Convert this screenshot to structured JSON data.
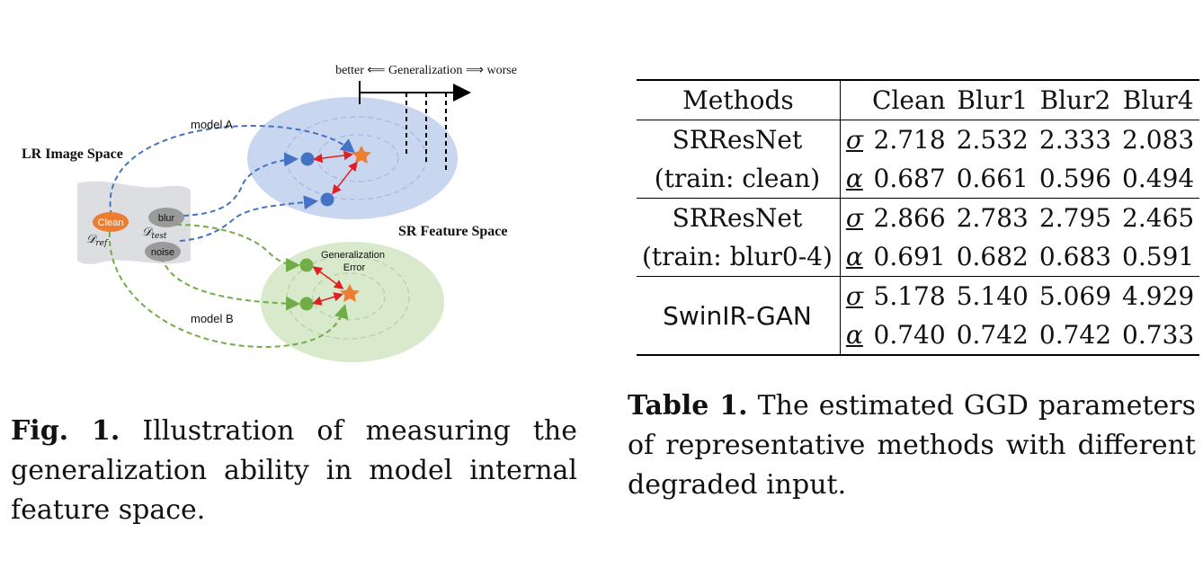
{
  "figure": {
    "axis_label": "better ⟸ Generalization ⟹ worse",
    "lr_space_label": "LR Image Space",
    "sr_space_label": "SR Feature Space",
    "model_a": "model A",
    "model_b": "model B",
    "clean": "Clean",
    "blur": "blur",
    "noise": "noise",
    "d_ref": "𝒟",
    "d_ref_sub": "ref",
    "d_test": "𝒟",
    "d_test_sub": "test",
    "gen_error_1": "Generalization",
    "gen_error_2": "Error",
    "colors": {
      "blue_region": "#c9d6ef",
      "green_region": "#d8eacb",
      "blue_dot": "#4472c4",
      "green_dot": "#70ad47",
      "orange": "#ed7d31",
      "red_arrow": "#e02020"
    }
  },
  "fig_caption": {
    "label": "Fig. 1.",
    "text": " Illustration of measuring the generalization ability in model internal feature space."
  },
  "table": {
    "headers": [
      "Methods",
      "Clean",
      "Blur1",
      "Blur2",
      "Blur4"
    ],
    "rows": [
      {
        "method_line1": "SRResNet",
        "method_line2": "(train: clean)",
        "sigma": [
          "2.718",
          "2.532",
          "2.333",
          "2.083"
        ],
        "alpha": [
          "0.687",
          "0.661",
          "0.596",
          "0.494"
        ]
      },
      {
        "method_line1": "SRResNet",
        "method_line2": "(train: blur0-4)",
        "sigma": [
          "2.866",
          "2.783",
          "2.795",
          "2.465"
        ],
        "alpha": [
          "0.691",
          "0.682",
          "0.683",
          "0.591"
        ]
      },
      {
        "method_line1": "SwinIR-GAN",
        "method_line2": "",
        "sigma": [
          "5.178",
          "5.140",
          "5.069",
          "4.929"
        ],
        "alpha": [
          "0.740",
          "0.742",
          "0.742",
          "0.733"
        ]
      }
    ],
    "sigma_symbol": "σ",
    "alpha_symbol": "α"
  },
  "table_caption": {
    "label": "Table 1.",
    "text": " The estimated GGD parameters of representative methods with different degraded input."
  }
}
